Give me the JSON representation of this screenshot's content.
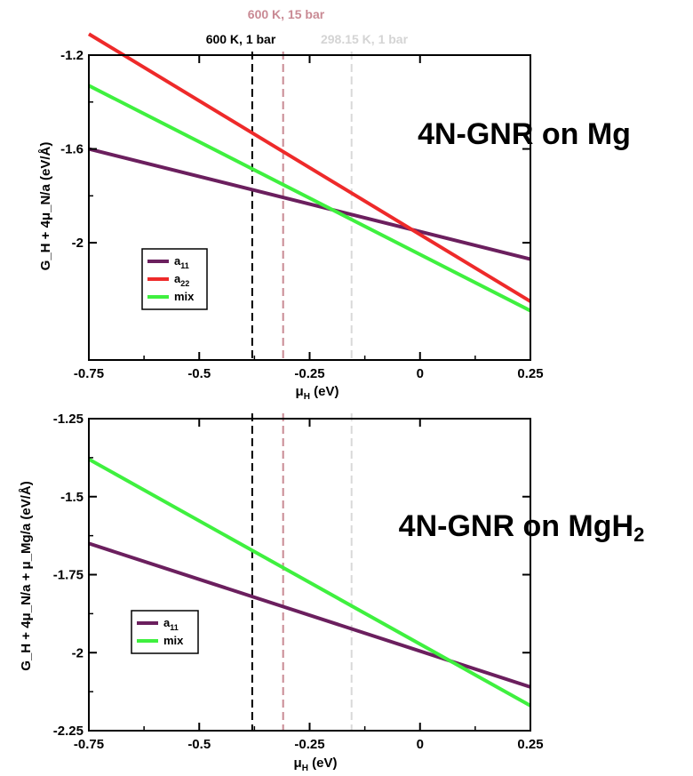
{
  "colors": {
    "a11": "#6b1f5e",
    "a22": "#ee2a2a",
    "mix": "#3ff03f",
    "vline_600_1": "#000000",
    "vline_600_15": "#c98a94",
    "vline_298": "#d9d9d9"
  },
  "header_labels": {
    "p600_15": "600 K, 15 bar",
    "p600_1": "600 K, 1 bar",
    "p298": "298.15 K, 1 bar"
  },
  "chart_data": [
    {
      "type": "line",
      "title": "4N-GNR on Mg",
      "xlabel_main": "μ",
      "xlabel_sub": "H",
      "xlabel_tail": " (eV)",
      "ylabel": "G_H + 4μ_N/a (eV/Å)",
      "xlim": [
        -0.75,
        0.25
      ],
      "ylim": [
        -2.5,
        -1.2
      ],
      "xticks": [
        -0.75,
        -0.5,
        -0.25,
        0,
        0.25
      ],
      "xtick_labels": [
        "-0.75",
        "-0.5",
        "-0.25",
        "0",
        "0.25"
      ],
      "yticks": [
        -1.2,
        -1.6,
        -2
      ],
      "ytick_labels": [
        "-1.2",
        "-1.6",
        "-2"
      ],
      "vlines": [
        {
          "x": -0.38,
          "color_key": "vline_600_1"
        },
        {
          "x": -0.31,
          "color_key": "vline_600_15"
        },
        {
          "x": -0.155,
          "color_key": "vline_298"
        }
      ],
      "series": [
        {
          "name": "a11",
          "color_key": "a11",
          "x": [
            -0.75,
            0.25
          ],
          "y": [
            -1.6,
            -2.07
          ]
        },
        {
          "name": "a22",
          "color_key": "a22",
          "x": [
            -0.75,
            0.25
          ],
          "y": [
            -1.11,
            -2.25
          ]
        },
        {
          "name": "mix",
          "color_key": "mix",
          "x": [
            -0.75,
            0.25
          ],
          "y": [
            -1.33,
            -2.29
          ]
        }
      ],
      "legend": {
        "placement": "lower-left",
        "entries": [
          {
            "main": "a",
            "sub": "11",
            "color_key": "a11"
          },
          {
            "main": "a",
            "sub": "22",
            "color_key": "a22"
          },
          {
            "main": "mix",
            "sub": "",
            "color_key": "mix"
          }
        ]
      }
    },
    {
      "type": "line",
      "title": "4N-GNR on MgH",
      "title_sub": "2",
      "xlabel_main": "μ",
      "xlabel_sub": "H",
      "xlabel_tail": " (eV)",
      "ylabel": "G_H + 4μ_N/a + μ_Mg/a (eV/Å)",
      "xlim": [
        -0.75,
        0.25
      ],
      "ylim": [
        -2.25,
        -1.25
      ],
      "xticks": [
        -0.75,
        -0.5,
        -0.25,
        0,
        0.25
      ],
      "xtick_labels": [
        "-0.75",
        "-0.5",
        "-0.25",
        "0",
        "0.25"
      ],
      "yticks": [
        -1.25,
        -1.5,
        -1.75,
        -2,
        -2.25
      ],
      "ytick_labels": [
        "-1.25",
        "-1.5",
        "-1.75",
        "-2",
        "-2.25"
      ],
      "vlines": [
        {
          "x": -0.38,
          "color_key": "vline_600_1"
        },
        {
          "x": -0.31,
          "color_key": "vline_600_15"
        },
        {
          "x": -0.155,
          "color_key": "vline_298"
        }
      ],
      "series": [
        {
          "name": "a11",
          "color_key": "a11",
          "x": [
            -0.75,
            0.25
          ],
          "y": [
            -1.65,
            -2.11
          ]
        },
        {
          "name": "mix",
          "color_key": "mix",
          "x": [
            -0.75,
            0.25
          ],
          "y": [
            -1.38,
            -2.17
          ]
        }
      ],
      "legend": {
        "placement": "lower-left",
        "entries": [
          {
            "main": "a",
            "sub": "11",
            "color_key": "a11"
          },
          {
            "main": "mix",
            "sub": "",
            "color_key": "mix"
          }
        ]
      }
    }
  ]
}
